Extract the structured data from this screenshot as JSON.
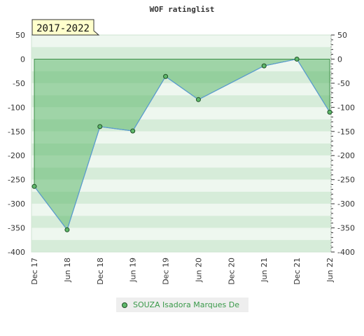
{
  "chart_data": {
    "type": "area",
    "title": "WOF ratinglist",
    "period_label": "2017-2022",
    "x_labels": [
      "Dec 17",
      "Jun 18",
      "Dec 18",
      "Jun 19",
      "Dec 19",
      "Jun 20",
      "Dec 20",
      "Jun 21",
      "Dec 21",
      "Jun 22"
    ],
    "series": [
      {
        "name": "SOUZA Isadora Marques De",
        "points": [
          {
            "x": "Dec 17",
            "y": -264
          },
          {
            "x": "Jun 18",
            "y": -354
          },
          {
            "x": "Dec 18",
            "y": -140
          },
          {
            "x": "Jun 19",
            "y": -149
          },
          {
            "x": "Dec 19",
            "y": -36
          },
          {
            "x": "Jun 20",
            "y": -84
          },
          {
            "x": "Jun 21",
            "y": -14
          },
          {
            "x": "Dec 21",
            "y": 0
          },
          {
            "x": "Jun 22",
            "y": -110
          }
        ]
      }
    ],
    "y_ticks": [
      50,
      0,
      -50,
      -100,
      -150,
      -200,
      -250,
      -300,
      -350,
      -400
    ],
    "ylim": [
      -400,
      50
    ],
    "grid": true,
    "colors": {
      "line": "#5b9bd5",
      "fill": "#5fb86b",
      "marker": "#5fb86b",
      "legend_text": "#3a9a4a"
    }
  }
}
